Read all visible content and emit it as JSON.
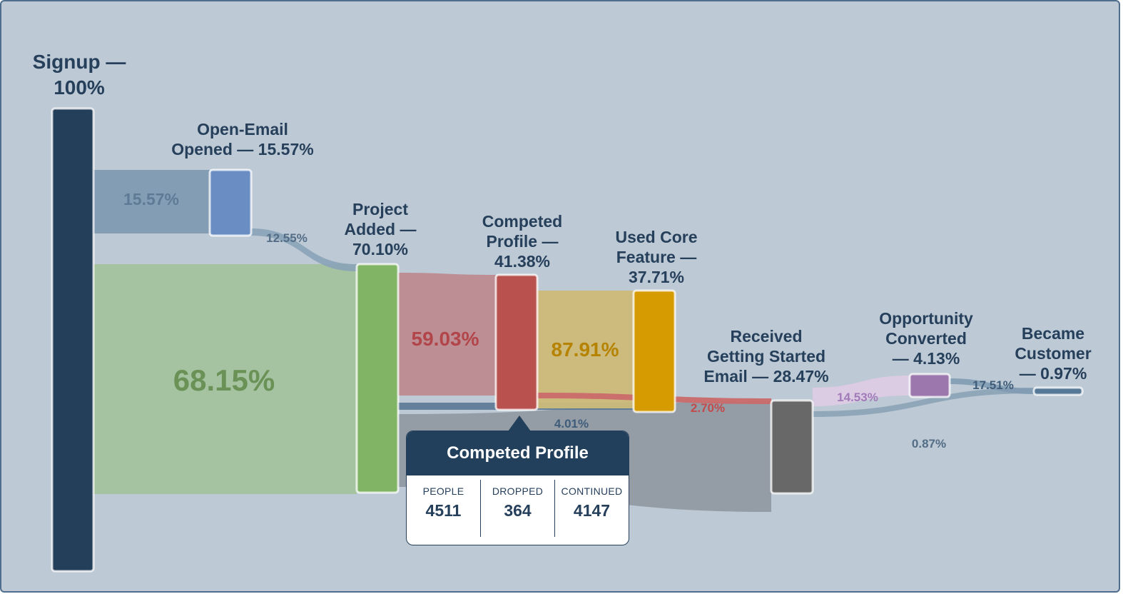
{
  "chart_data": {
    "type": "sankey",
    "nodes": [
      {
        "id": "signup",
        "label_lines": [
          "Signup —",
          "100%"
        ],
        "color": "#243f5a"
      },
      {
        "id": "open_email",
        "label_lines": [
          "Open-Email",
          "Opened — 15.57%"
        ],
        "color": "#6a8ec4"
      },
      {
        "id": "project_added",
        "label_lines": [
          "Project",
          "Added —",
          "70.10%"
        ],
        "color": "#82b466"
      },
      {
        "id": "competed_profile",
        "label_lines": [
          "Competed",
          "Profile —",
          "41.38%"
        ],
        "color": "#b9524e"
      },
      {
        "id": "used_core",
        "label_lines": [
          "Used Core",
          "Feature —",
          "37.71%"
        ],
        "color": "#d69b00"
      },
      {
        "id": "received_email",
        "label_lines": [
          "Received",
          "Getting Started",
          "Email — 28.47%"
        ],
        "color": "#686868"
      },
      {
        "id": "opportunity",
        "label_lines": [
          "Opportunity",
          "Converted",
          "— 4.13%"
        ],
        "color": "#9b77ad"
      },
      {
        "id": "customer",
        "label_lines": [
          "Became",
          "Customer",
          "— 0.97%"
        ],
        "color": "#557896"
      }
    ],
    "links": [
      {
        "source": "signup",
        "target": "open_email",
        "label": "15.57%",
        "color": "#7f9bb3",
        "label_color": "#5e7a95"
      },
      {
        "source": "signup",
        "target": "project_added",
        "label": "68.15%",
        "color": "#a3c39e",
        "label_color": "#6a9156"
      },
      {
        "source": "open_email",
        "target": "project_added",
        "label": "12.55%",
        "color": "#8aa3b8",
        "label_color": "#536d86"
      },
      {
        "source": "project_added",
        "target": "competed_profile",
        "label": "59.03%",
        "color": "#bd8c91",
        "label_color": "#b2454a"
      },
      {
        "source": "project_added",
        "target": "received_email",
        "label": "",
        "color": "#919ba3",
        "label_color": "#536d86"
      },
      {
        "source": "project_added",
        "target": "used_core",
        "label": "4.01%",
        "color": "#5a7894",
        "label_color": "#3f5d7a"
      },
      {
        "source": "competed_profile",
        "target": "used_core",
        "label": "87.91%",
        "color": "#cdbb79",
        "label_color": "#b58300"
      },
      {
        "source": "competed_profile",
        "target": "received_email",
        "label": "2.70%",
        "color": "#c96a6a",
        "label_color": "#c24a4a"
      },
      {
        "source": "received_email",
        "target": "opportunity",
        "label": "14.53%",
        "color": "#dccbe4",
        "label_color": "#a07bb8"
      },
      {
        "source": "received_email",
        "target": "customer",
        "label": "0.87%",
        "color": "#8ba3b7",
        "label_color": "#536d86"
      },
      {
        "source": "opportunity",
        "target": "customer",
        "label": "17.51%",
        "color": "#7f9bb3",
        "label_color": "#3f5d7a"
      }
    ],
    "tooltip": {
      "title": "Competed Profile",
      "stats": [
        {
          "label": "PEOPLE",
          "value": "4511"
        },
        {
          "label": "DROPPED",
          "value": "364"
        },
        {
          "label": "CONTINUED",
          "value": "4147"
        }
      ]
    }
  }
}
